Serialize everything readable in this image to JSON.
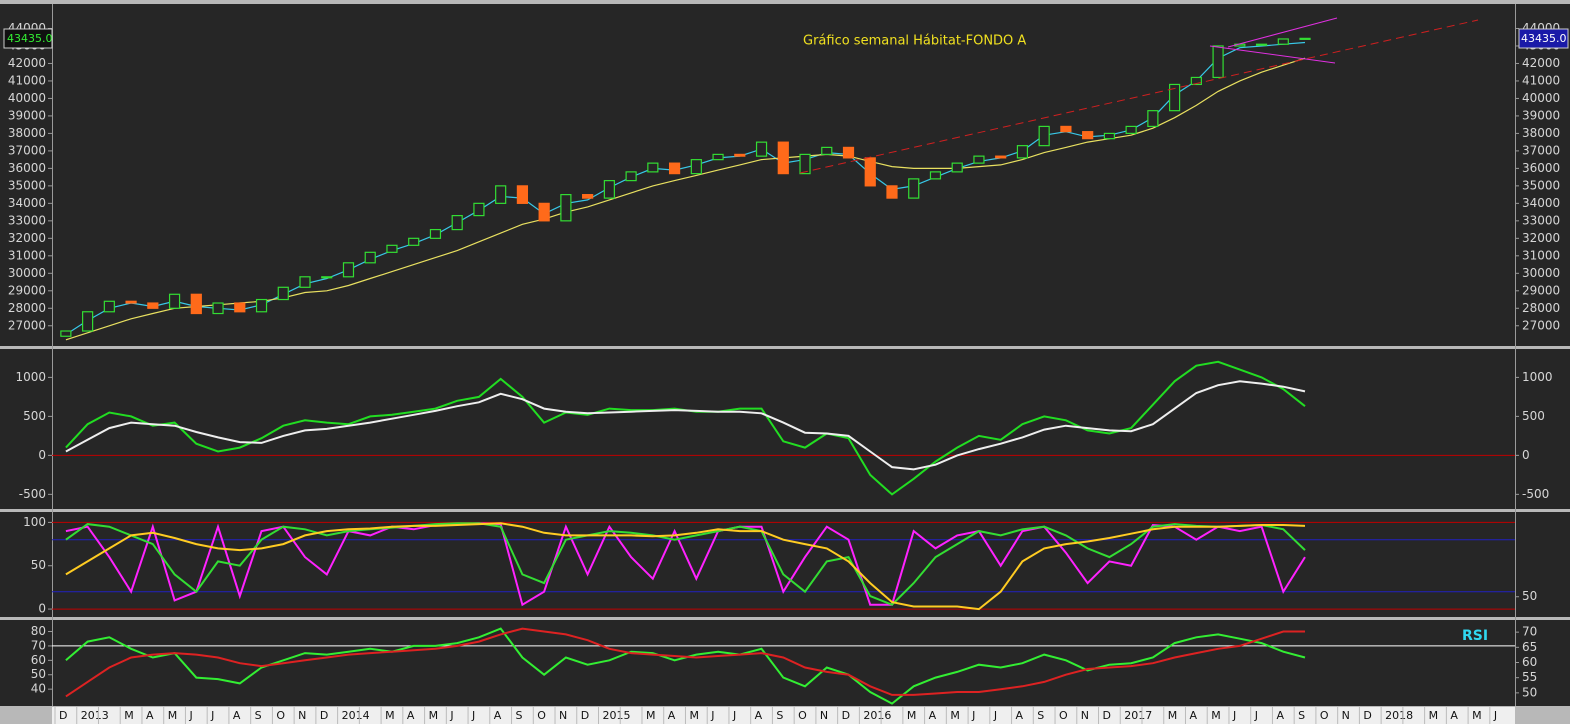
{
  "chart_data": [
    {
      "type": "candlestick",
      "title": "Gráfico semanal Hábitat-FONDO A",
      "last_price_label": "43435.0",
      "categories": [
        "D",
        "2013",
        null,
        "M",
        "A",
        "M",
        "J",
        "J",
        "A",
        "S",
        "O",
        "N",
        "D",
        "2014",
        null,
        "M",
        "A",
        "M",
        "J",
        "J",
        "A",
        "S",
        "O",
        "N",
        "D",
        "2015",
        null,
        "M",
        "A",
        "M",
        "J",
        "J",
        "A",
        "S",
        "O",
        "N",
        "D",
        "2016",
        null,
        "M",
        "A",
        "M",
        "J",
        "J",
        "A",
        "S",
        "O",
        "N",
        "D",
        "2017",
        null,
        "M",
        "A",
        "M",
        "J",
        "J",
        "A",
        "S",
        "O",
        "N",
        "D",
        "2018",
        null,
        "M",
        "A",
        "M",
        "J"
      ],
      "open": [
        26400,
        26700,
        27800,
        28400,
        28300,
        28000,
        28800,
        27700,
        28300,
        27800,
        28500,
        29200,
        29800,
        29800,
        30600,
        31200,
        31600,
        32000,
        32500,
        33300,
        34000,
        35000,
        34000,
        33000,
        34500,
        34300,
        35300,
        35800,
        36300,
        35700,
        36500,
        36800,
        36700,
        37500,
        35700,
        36800,
        37200,
        36600,
        35000,
        34300,
        35400,
        35800,
        36300,
        36700,
        36600,
        37300,
        38400,
        38100,
        37700,
        38000,
        38400,
        39300,
        40800,
        41200,
        43000,
        43100,
        43100,
        43400,
        null,
        null,
        null,
        null,
        null,
        null,
        null,
        null,
        null
      ],
      "close": [
        26700,
        27800,
        28400,
        28300,
        28000,
        28800,
        27700,
        28300,
        27800,
        28500,
        29200,
        29800,
        29800,
        30600,
        31200,
        31600,
        32000,
        32500,
        33300,
        34000,
        35000,
        34000,
        33000,
        34500,
        34300,
        35300,
        35800,
        36300,
        35700,
        36500,
        36800,
        36700,
        37500,
        35700,
        36800,
        37200,
        36600,
        35000,
        34300,
        35400,
        35800,
        36300,
        36700,
        36600,
        37300,
        38400,
        38100,
        37700,
        38000,
        38400,
        39300,
        40800,
        41200,
        43000,
        43100,
        43100,
        43400,
        43435,
        null,
        null,
        null,
        null,
        null,
        null,
        null,
        null,
        null
      ],
      "up_color": "#33dd33",
      "down_color": "#ff6a1a",
      "series": [
        {
          "color": "#38c8e8",
          "values": [
            26500,
            27300,
            28000,
            28300,
            28100,
            28400,
            28100,
            28000,
            27900,
            28200,
            28800,
            29400,
            29700,
            30200,
            30800,
            31300,
            31700,
            32200,
            32900,
            33600,
            34400,
            34300,
            33400,
            34000,
            34200,
            34900,
            35500,
            36000,
            35900,
            36200,
            36600,
            36700,
            37100,
            36300,
            36500,
            36900,
            36800,
            35700,
            34800,
            35000,
            35500,
            36000,
            36400,
            36600,
            37000,
            37900,
            38100,
            37800,
            37900,
            38200,
            38900,
            40200,
            41000,
            42300,
            42900,
            43000,
            43100,
            43200,
            null,
            null,
            null,
            null,
            null,
            null,
            null,
            null,
            null
          ]
        },
        {
          "color": "#e8e060",
          "values": [
            26200,
            26600,
            27000,
            27400,
            27700,
            28000,
            28100,
            28200,
            28300,
            28400,
            28600,
            28900,
            29000,
            29300,
            29700,
            30100,
            30500,
            30900,
            31300,
            31800,
            32300,
            32800,
            33100,
            33500,
            33800,
            34200,
            34600,
            35000,
            35300,
            35600,
            35900,
            36200,
            36500,
            36600,
            36700,
            36800,
            36700,
            36400,
            36100,
            36000,
            36000,
            36000,
            36100,
            36200,
            36500,
            36900,
            37200,
            37500,
            37700,
            37900,
            38300,
            38900,
            39600,
            40400,
            41000,
            41500,
            41900,
            42300,
            null,
            null,
            null,
            null,
            null,
            null,
            null,
            null,
            null
          ]
        }
      ],
      "ylim": [
        25900,
        45400
      ],
      "yticks": [
        27000,
        28000,
        29000,
        30000,
        31000,
        32000,
        33000,
        34000,
        35000,
        36000,
        37000,
        38000,
        39000,
        40000,
        41000,
        42000,
        43000,
        44000
      ]
    },
    {
      "type": "line",
      "ylim": [
        -675,
        1364
      ],
      "yticks": [
        -500,
        0,
        500,
        1000
      ],
      "hlines": [
        {
          "value": 0,
          "color": "#c00000"
        }
      ],
      "series": [
        {
          "color": "#22dd22",
          "values": [
            100,
            400,
            550,
            500,
            380,
            420,
            150,
            50,
            100,
            220,
            380,
            450,
            420,
            400,
            500,
            520,
            560,
            600,
            700,
            750,
            980,
            750,
            420,
            550,
            520,
            600,
            580,
            580,
            600,
            560,
            560,
            600,
            600,
            180,
            100,
            280,
            220,
            -250,
            -500,
            -300,
            -80,
            100,
            250,
            200,
            400,
            500,
            450,
            320,
            280,
            350,
            650,
            950,
            1150,
            1200,
            1100,
            1000,
            850,
            630,
            null,
            null,
            null,
            null,
            null,
            null,
            null,
            null,
            null
          ]
        },
        {
          "color": "#eeeeee",
          "values": [
            50,
            200,
            350,
            420,
            400,
            380,
            300,
            230,
            170,
            160,
            250,
            320,
            340,
            380,
            420,
            470,
            520,
            570,
            630,
            680,
            790,
            720,
            600,
            560,
            540,
            550,
            560,
            570,
            580,
            570,
            560,
            560,
            540,
            420,
            290,
            280,
            250,
            50,
            -150,
            -180,
            -120,
            0,
            80,
            150,
            230,
            330,
            380,
            350,
            320,
            310,
            400,
            600,
            800,
            900,
            950,
            920,
            880,
            820,
            null,
            null,
            null,
            null,
            null,
            null,
            null,
            null,
            null
          ]
        }
      ]
    },
    {
      "type": "line",
      "ylim": [
        -8,
        112
      ],
      "yticks": [
        0,
        50,
        100
      ],
      "y2lim": [
        45,
        72
      ],
      "y2ticks": [
        50
      ],
      "hlines": [
        {
          "value": 0,
          "color": "#c00000"
        },
        {
          "value": 100,
          "color": "#c00000"
        },
        {
          "value": 20,
          "color": "#2020c0"
        },
        {
          "value": 80,
          "color": "#2020c0"
        }
      ],
      "series": [
        {
          "color": "#ff22ff",
          "values": [
            90,
            95,
            60,
            20,
            95,
            10,
            20,
            95,
            15,
            90,
            95,
            60,
            40,
            90,
            85,
            95,
            92,
            97,
            98,
            99,
            98,
            5,
            20,
            95,
            40,
            95,
            60,
            35,
            90,
            35,
            90,
            95,
            95,
            20,
            60,
            95,
            80,
            5,
            5,
            90,
            70,
            85,
            90,
            50,
            90,
            95,
            65,
            30,
            55,
            50,
            97,
            95,
            80,
            95,
            90,
            95,
            20,
            60,
            null,
            null,
            null,
            null,
            null,
            null,
            null,
            null,
            null
          ]
        },
        {
          "color": "#33dd33",
          "values": [
            80,
            98,
            95,
            85,
            75,
            40,
            20,
            55,
            50,
            80,
            95,
            92,
            85,
            90,
            92,
            94,
            96,
            98,
            99,
            99,
            95,
            40,
            30,
            80,
            85,
            90,
            88,
            85,
            80,
            85,
            90,
            95,
            90,
            40,
            20,
            55,
            60,
            15,
            5,
            30,
            60,
            75,
            90,
            85,
            92,
            95,
            85,
            70,
            60,
            75,
            95,
            98,
            96,
            95,
            96,
            97,
            92,
            68,
            null,
            null,
            null,
            null,
            null,
            null,
            null,
            null,
            null
          ]
        },
        {
          "color": "#ffcc22",
          "values": [
            40,
            55,
            70,
            85,
            88,
            82,
            75,
            70,
            68,
            70,
            75,
            85,
            90,
            92,
            93,
            95,
            96,
            96,
            97,
            98,
            99,
            95,
            88,
            85,
            85,
            85,
            85,
            84,
            85,
            88,
            92,
            90,
            90,
            80,
            75,
            70,
            55,
            30,
            8,
            3,
            3,
            3,
            0,
            20,
            55,
            70,
            75,
            78,
            82,
            87,
            92,
            95,
            95,
            95,
            96,
            97,
            97,
            96,
            null,
            null,
            null,
            null,
            null,
            null,
            null,
            null,
            null
          ]
        }
      ]
    },
    {
      "type": "line",
      "title": "RSI",
      "ylim": [
        29,
        88
      ],
      "yticks": [
        40,
        50,
        60,
        70,
        80
      ],
      "y2lim": [
        46,
        74
      ],
      "y2ticks": [
        50,
        55,
        60,
        65,
        70
      ],
      "hlines": [
        {
          "value": 70,
          "color": "#ffffff"
        }
      ],
      "series": [
        {
          "color": "#33ee33",
          "values": [
            60,
            73,
            76,
            68,
            62,
            65,
            48,
            47,
            44,
            55,
            60,
            65,
            64,
            66,
            68,
            66,
            70,
            70,
            72,
            76,
            82,
            62,
            50,
            62,
            57,
            60,
            66,
            65,
            60,
            64,
            66,
            64,
            68,
            48,
            42,
            55,
            50,
            38,
            30,
            42,
            48,
            52,
            57,
            55,
            58,
            64,
            60,
            53,
            57,
            58,
            62,
            72,
            76,
            78,
            75,
            72,
            66,
            62,
            null,
            null,
            null,
            null,
            null,
            null,
            null,
            null,
            null
          ]
        },
        {
          "color": "#dd2222",
          "values": [
            35,
            45,
            55,
            62,
            64,
            65,
            64,
            62,
            58,
            56,
            58,
            60,
            62,
            64,
            65,
            66,
            67,
            68,
            70,
            73,
            78,
            82,
            80,
            78,
            74,
            68,
            65,
            64,
            63,
            62,
            63,
            64,
            65,
            62,
            55,
            52,
            50,
            42,
            36,
            36,
            37,
            38,
            38,
            40,
            42,
            45,
            50,
            54,
            55,
            56,
            58,
            62,
            65,
            68,
            70,
            75,
            80,
            80,
            null,
            null,
            null,
            null,
            null,
            null,
            null,
            null,
            null
          ]
        }
      ]
    }
  ]
}
